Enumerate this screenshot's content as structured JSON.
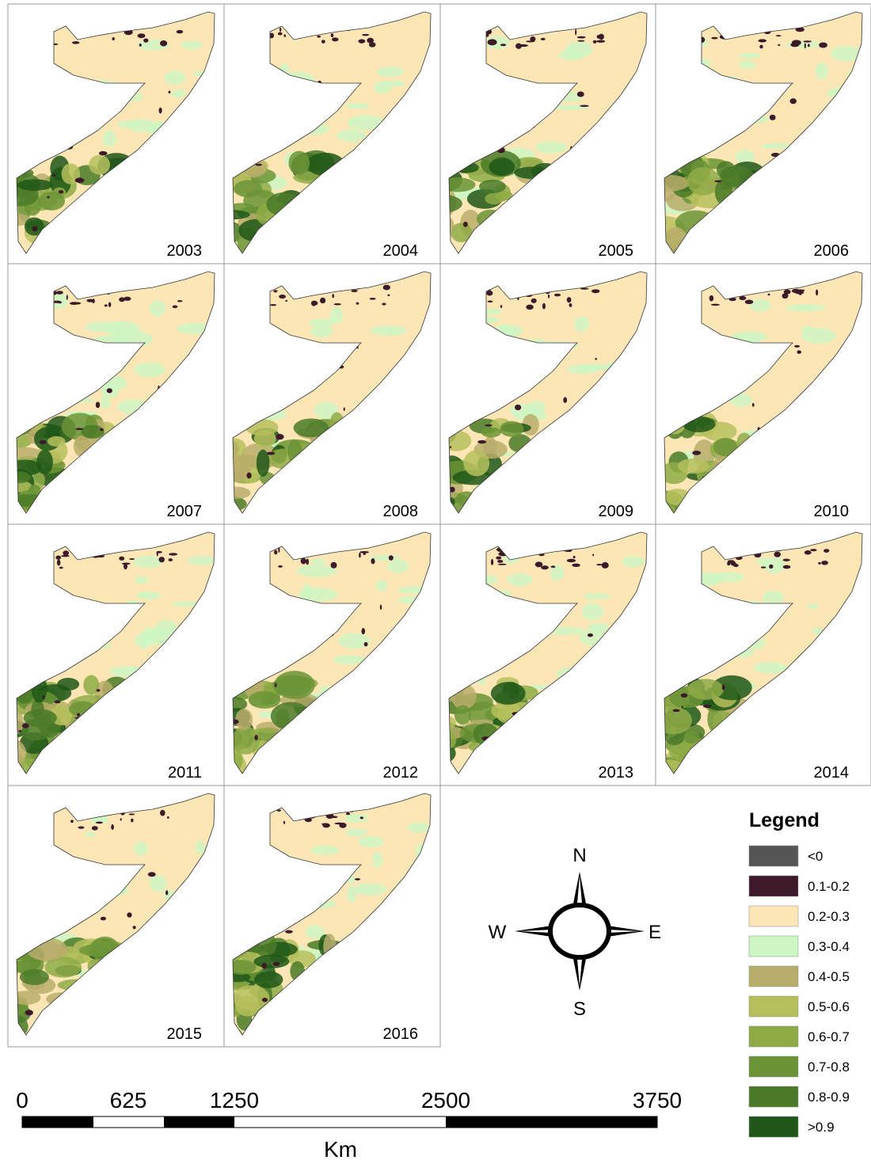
{
  "panels": {
    "years": [
      "2003",
      "2004",
      "2005",
      "2006",
      "2007",
      "2008",
      "2009",
      "2010",
      "2011",
      "2012",
      "2013",
      "2014",
      "2015",
      "2016"
    ]
  },
  "legend": {
    "title": "Legend",
    "items": [
      {
        "label": "<0",
        "color": "#555555"
      },
      {
        "label": "0.1-0.2",
        "color": "#3d1a2a"
      },
      {
        "label": "0.2-0.3",
        "color": "#fde6b5"
      },
      {
        "label": "0.3-0.4",
        "color": "#ccf7c4"
      },
      {
        "label": "0.4-0.5",
        "color": "#b9ad6b"
      },
      {
        "label": "0.5-0.6",
        "color": "#b5c05c"
      },
      {
        "label": "0.6-0.7",
        "color": "#8fab46"
      },
      {
        "label": "0.7-0.8",
        "color": "#6b9436"
      },
      {
        "label": "0.8-0.9",
        "color": "#4a7a28"
      },
      {
        "label": ">0.9",
        "color": "#1f5718"
      }
    ]
  },
  "compass": {
    "north": "N",
    "south": "S",
    "east": "E",
    "west": "W"
  },
  "scale_bar": {
    "labels": [
      "0",
      "625",
      "1250",
      "2500",
      "3750"
    ],
    "unit": "Km"
  }
}
